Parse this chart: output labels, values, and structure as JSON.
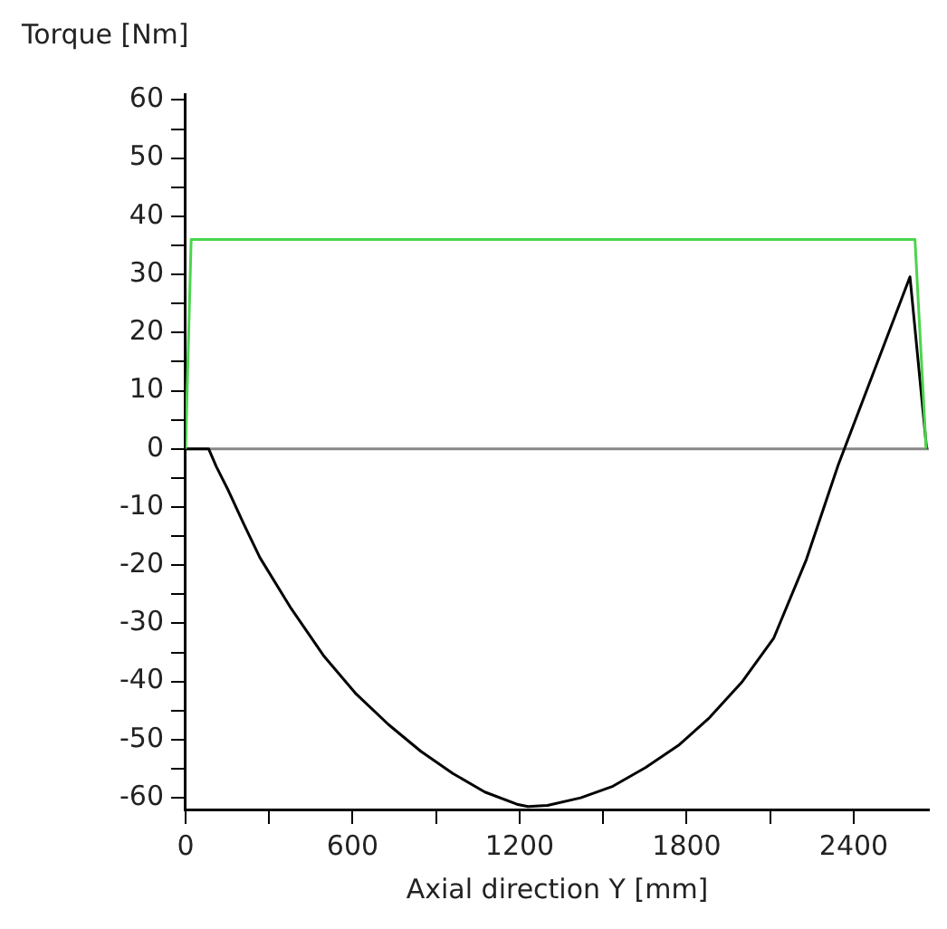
{
  "chart_data": {
    "type": "line",
    "xlabel": "Axial direction Y [mm]",
    "ylabel": "Torque [Nm]",
    "xlim": [
      0,
      2670
    ],
    "ylim": [
      -62,
      61
    ],
    "xticks": [
      0,
      {
        "value": 300,
        "label": null
      },
      600,
      {
        "value": 900,
        "label": null
      },
      1200,
      {
        "value": 1500,
        "label": null
      },
      1800,
      {
        "value": 2100,
        "label": null
      },
      2400
    ],
    "yticks": [
      -60,
      {
        "value": -55,
        "label": null
      },
      -50,
      {
        "value": -45,
        "label": null
      },
      -40,
      {
        "value": -35,
        "label": null
      },
      -30,
      {
        "value": -25,
        "label": null
      },
      -20,
      {
        "value": -15,
        "label": null
      },
      -10,
      {
        "value": -5,
        "label": null
      },
      0,
      {
        "value": 5,
        "label": null
      },
      10,
      {
        "value": 15,
        "label": null
      },
      20,
      {
        "value": 25,
        "label": null
      },
      30,
      {
        "value": 35,
        "label": null
      },
      40,
      {
        "value": 45,
        "label": null
      },
      50,
      {
        "value": 55,
        "label": null
      },
      60
    ],
    "grid": false,
    "legend": false,
    "marker": "none",
    "line_style": "solid",
    "ref_lines": [
      {
        "axis": "y",
        "value": 0,
        "color": "#888888",
        "line_style": "solid"
      }
    ],
    "series": [
      {
        "color": "#4cd44c",
        "x": [
          0,
          20,
          2620,
          2660
        ],
        "values": [
          0,
          36,
          36,
          0
        ]
      },
      {
        "color": "#000000",
        "x": [
          0,
          83,
          110,
          152,
          210,
          267,
          380,
          498,
          610,
          729,
          845,
          960,
          1075,
          1190,
          1230,
          1300,
          1419,
          1535,
          1652,
          1770,
          1882,
          2000,
          2113,
          2230,
          2344,
          2470,
          2602,
          2662
        ],
        "values": [
          0,
          0,
          -3,
          -7,
          -13,
          -18.7,
          -27.5,
          -35.7,
          -42,
          -47.4,
          -52,
          -55.8,
          -59,
          -61.1,
          -61.5,
          -61.3,
          -60,
          -58,
          -54.8,
          -51,
          -46.2,
          -40,
          -32.5,
          -19,
          -2.8,
          13,
          29.6,
          0
        ]
      }
    ]
  }
}
